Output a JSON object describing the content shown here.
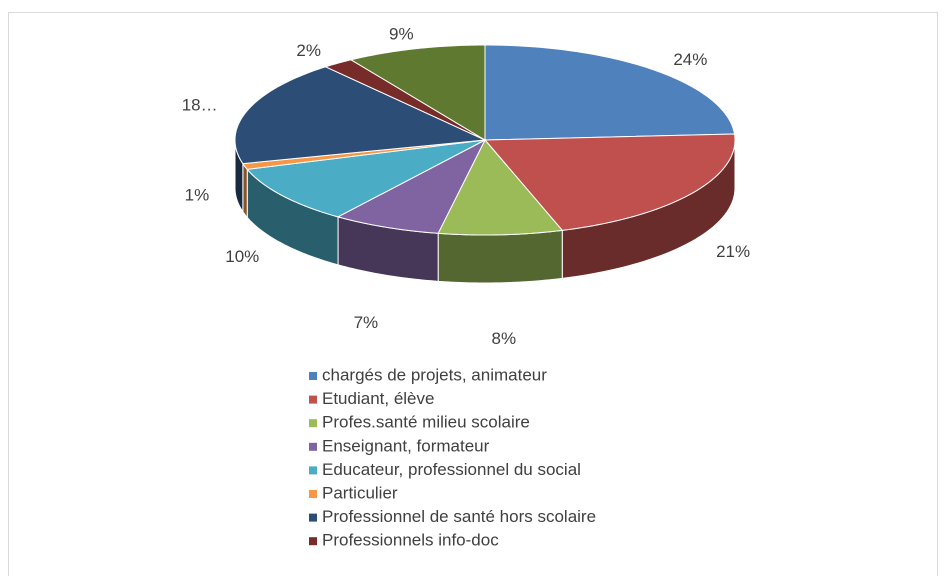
{
  "chart_data": {
    "type": "pie",
    "categories": [
      "chargés de projets, animateur",
      "Etudiant, élève",
      "Profes.santé milieu scolaire",
      "Enseignant, formateur",
      "Educateur, professionnel du social",
      "Particulier",
      "Professionnel de santé hors scolaire",
      "Professionnels info-doc",
      null
    ],
    "values": [
      24,
      21,
      8,
      7,
      10,
      1,
      18,
      2,
      9
    ],
    "value_labels": [
      "24%",
      "21%",
      "8%",
      "7%",
      "10%",
      "1%",
      "18…",
      "2%",
      "9%"
    ],
    "colors": [
      "#4f81bd",
      "#c0504d",
      "#9bbb59",
      "#8064a2",
      "#4bacc6",
      "#f79646",
      "#2c4d75",
      "#772c2a",
      "#5f7a30"
    ],
    "legend": "bottom"
  }
}
